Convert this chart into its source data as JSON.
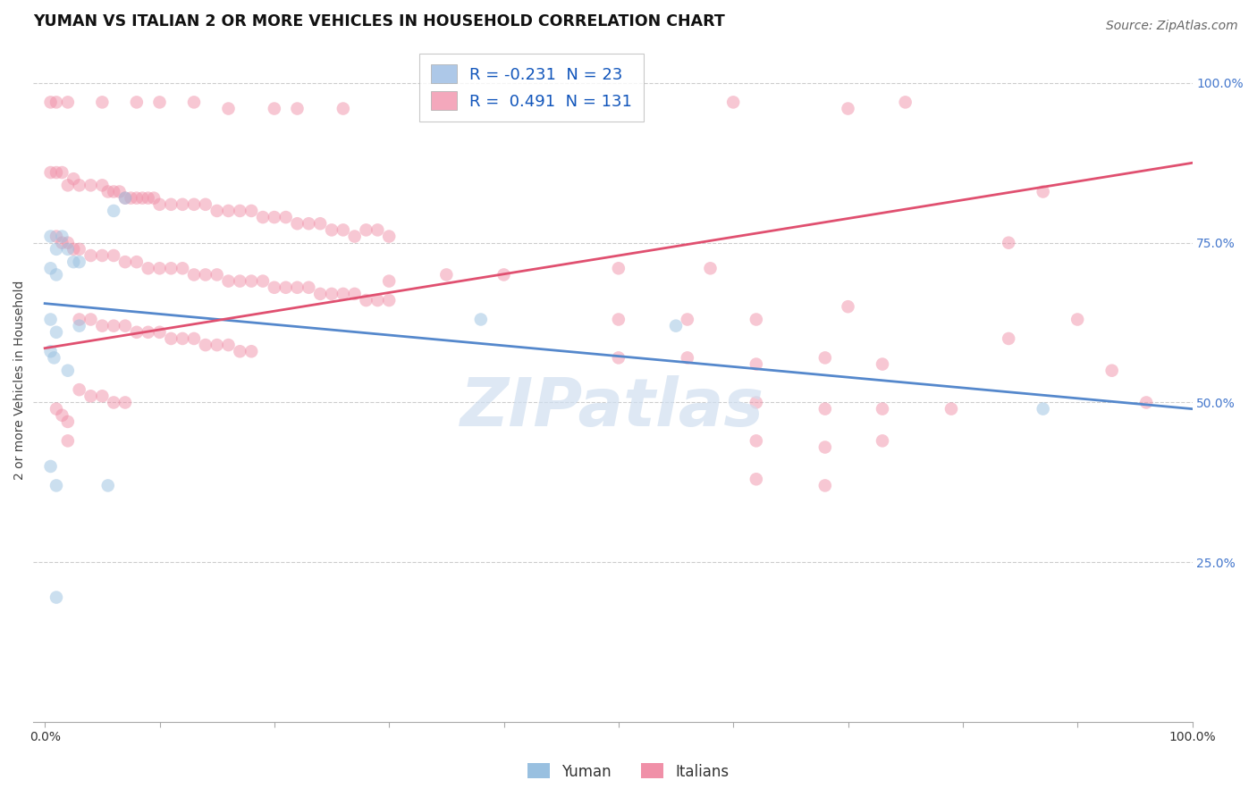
{
  "title": "YUMAN VS ITALIAN 2 OR MORE VEHICLES IN HOUSEHOLD CORRELATION CHART",
  "source": "Source: ZipAtlas.com",
  "ylabel": "2 or more Vehicles in Household",
  "right_yticks": [
    "100.0%",
    "75.0%",
    "50.0%",
    "25.0%"
  ],
  "right_ytick_vals": [
    1.0,
    0.75,
    0.5,
    0.25
  ],
  "legend_entries": [
    {
      "label": "Yuman",
      "R": "-0.231",
      "N": "23",
      "color": "#adc8e8"
    },
    {
      "label": "Italians",
      "R": "0.491",
      "N": "131",
      "color": "#f4a8bc"
    }
  ],
  "watermark": "ZIPatlas",
  "yuman_scatter": [
    [
      0.005,
      0.76
    ],
    [
      0.01,
      0.74
    ],
    [
      0.015,
      0.76
    ],
    [
      0.02,
      0.74
    ],
    [
      0.025,
      0.72
    ],
    [
      0.005,
      0.71
    ],
    [
      0.01,
      0.7
    ],
    [
      0.03,
      0.72
    ],
    [
      0.03,
      0.62
    ],
    [
      0.06,
      0.8
    ],
    [
      0.07,
      0.82
    ],
    [
      0.005,
      0.63
    ],
    [
      0.01,
      0.61
    ],
    [
      0.005,
      0.58
    ],
    [
      0.008,
      0.57
    ],
    [
      0.02,
      0.55
    ],
    [
      0.005,
      0.4
    ],
    [
      0.01,
      0.37
    ],
    [
      0.055,
      0.37
    ],
    [
      0.01,
      0.195
    ],
    [
      0.38,
      0.63
    ],
    [
      0.55,
      0.62
    ],
    [
      0.87,
      0.49
    ]
  ],
  "italians_scatter": [
    [
      0.005,
      0.97
    ],
    [
      0.01,
      0.97
    ],
    [
      0.02,
      0.97
    ],
    [
      0.05,
      0.97
    ],
    [
      0.08,
      0.97
    ],
    [
      0.1,
      0.97
    ],
    [
      0.13,
      0.97
    ],
    [
      0.16,
      0.96
    ],
    [
      0.2,
      0.96
    ],
    [
      0.22,
      0.96
    ],
    [
      0.26,
      0.96
    ],
    [
      0.6,
      0.97
    ],
    [
      0.7,
      0.96
    ],
    [
      0.75,
      0.97
    ],
    [
      0.005,
      0.86
    ],
    [
      0.01,
      0.86
    ],
    [
      0.015,
      0.86
    ],
    [
      0.02,
      0.84
    ],
    [
      0.025,
      0.85
    ],
    [
      0.03,
      0.84
    ],
    [
      0.04,
      0.84
    ],
    [
      0.05,
      0.84
    ],
    [
      0.055,
      0.83
    ],
    [
      0.06,
      0.83
    ],
    [
      0.065,
      0.83
    ],
    [
      0.07,
      0.82
    ],
    [
      0.075,
      0.82
    ],
    [
      0.08,
      0.82
    ],
    [
      0.085,
      0.82
    ],
    [
      0.09,
      0.82
    ],
    [
      0.095,
      0.82
    ],
    [
      0.1,
      0.81
    ],
    [
      0.11,
      0.81
    ],
    [
      0.12,
      0.81
    ],
    [
      0.13,
      0.81
    ],
    [
      0.14,
      0.81
    ],
    [
      0.15,
      0.8
    ],
    [
      0.16,
      0.8
    ],
    [
      0.17,
      0.8
    ],
    [
      0.18,
      0.8
    ],
    [
      0.19,
      0.79
    ],
    [
      0.2,
      0.79
    ],
    [
      0.21,
      0.79
    ],
    [
      0.22,
      0.78
    ],
    [
      0.23,
      0.78
    ],
    [
      0.24,
      0.78
    ],
    [
      0.25,
      0.77
    ],
    [
      0.26,
      0.77
    ],
    [
      0.27,
      0.76
    ],
    [
      0.28,
      0.77
    ],
    [
      0.29,
      0.77
    ],
    [
      0.3,
      0.76
    ],
    [
      0.01,
      0.76
    ],
    [
      0.015,
      0.75
    ],
    [
      0.02,
      0.75
    ],
    [
      0.025,
      0.74
    ],
    [
      0.03,
      0.74
    ],
    [
      0.04,
      0.73
    ],
    [
      0.05,
      0.73
    ],
    [
      0.06,
      0.73
    ],
    [
      0.07,
      0.72
    ],
    [
      0.08,
      0.72
    ],
    [
      0.09,
      0.71
    ],
    [
      0.1,
      0.71
    ],
    [
      0.11,
      0.71
    ],
    [
      0.12,
      0.71
    ],
    [
      0.13,
      0.7
    ],
    [
      0.14,
      0.7
    ],
    [
      0.15,
      0.7
    ],
    [
      0.16,
      0.69
    ],
    [
      0.17,
      0.69
    ],
    [
      0.18,
      0.69
    ],
    [
      0.19,
      0.69
    ],
    [
      0.2,
      0.68
    ],
    [
      0.21,
      0.68
    ],
    [
      0.22,
      0.68
    ],
    [
      0.23,
      0.68
    ],
    [
      0.24,
      0.67
    ],
    [
      0.25,
      0.67
    ],
    [
      0.26,
      0.67
    ],
    [
      0.27,
      0.67
    ],
    [
      0.28,
      0.66
    ],
    [
      0.29,
      0.66
    ],
    [
      0.3,
      0.66
    ],
    [
      0.03,
      0.63
    ],
    [
      0.04,
      0.63
    ],
    [
      0.05,
      0.62
    ],
    [
      0.06,
      0.62
    ],
    [
      0.07,
      0.62
    ],
    [
      0.08,
      0.61
    ],
    [
      0.09,
      0.61
    ],
    [
      0.1,
      0.61
    ],
    [
      0.11,
      0.6
    ],
    [
      0.12,
      0.6
    ],
    [
      0.13,
      0.6
    ],
    [
      0.14,
      0.59
    ],
    [
      0.15,
      0.59
    ],
    [
      0.16,
      0.59
    ],
    [
      0.17,
      0.58
    ],
    [
      0.18,
      0.58
    ],
    [
      0.03,
      0.52
    ],
    [
      0.04,
      0.51
    ],
    [
      0.05,
      0.51
    ],
    [
      0.06,
      0.5
    ],
    [
      0.07,
      0.5
    ],
    [
      0.01,
      0.49
    ],
    [
      0.015,
      0.48
    ],
    [
      0.02,
      0.47
    ],
    [
      0.02,
      0.44
    ],
    [
      0.3,
      0.69
    ],
    [
      0.35,
      0.7
    ],
    [
      0.4,
      0.7
    ],
    [
      0.5,
      0.71
    ],
    [
      0.58,
      0.71
    ],
    [
      0.5,
      0.63
    ],
    [
      0.56,
      0.63
    ],
    [
      0.62,
      0.63
    ],
    [
      0.7,
      0.65
    ],
    [
      0.5,
      0.57
    ],
    [
      0.56,
      0.57
    ],
    [
      0.62,
      0.56
    ],
    [
      0.68,
      0.57
    ],
    [
      0.73,
      0.56
    ],
    [
      0.62,
      0.5
    ],
    [
      0.68,
      0.49
    ],
    [
      0.73,
      0.49
    ],
    [
      0.79,
      0.49
    ],
    [
      0.62,
      0.44
    ],
    [
      0.68,
      0.43
    ],
    [
      0.73,
      0.44
    ],
    [
      0.62,
      0.38
    ],
    [
      0.68,
      0.37
    ],
    [
      0.96,
      0.5
    ],
    [
      0.93,
      0.55
    ],
    [
      0.84,
      0.75
    ],
    [
      0.87,
      0.83
    ],
    [
      0.84,
      0.6
    ],
    [
      0.9,
      0.63
    ]
  ],
  "yuman_line": {
    "x0": 0.0,
    "y0": 0.655,
    "x1": 1.0,
    "y1": 0.49
  },
  "italians_line": {
    "x0": 0.0,
    "y0": 0.585,
    "x1": 1.0,
    "y1": 0.875
  },
  "xlim": [
    -0.01,
    1.0
  ],
  "ylim": [
    0.0,
    1.07
  ],
  "scatter_size": 110,
  "scatter_alpha": 0.5,
  "yuman_color": "#99c0e0",
  "italians_color": "#f090a8",
  "yuman_line_color": "#5588cc",
  "italians_line_color": "#e05070",
  "grid_color": "#cccccc",
  "bg_color": "#ffffff",
  "watermark_color": "#d0dff0",
  "title_fontsize": 12.5,
  "label_fontsize": 10,
  "tick_fontsize": 10,
  "source_fontsize": 10
}
